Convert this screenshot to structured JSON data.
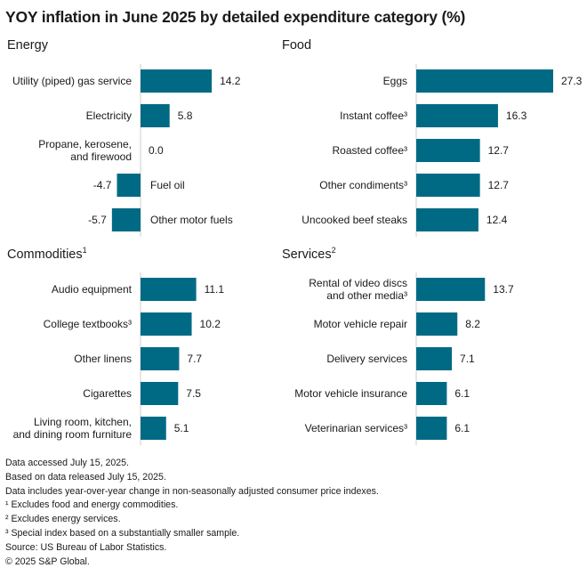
{
  "title": "YOY inflation in June 2025 by detailed expenditure category (%)",
  "colors": {
    "bar": "#006a85",
    "axis": "#cccccc"
  },
  "chart_data": [
    {
      "type": "bar",
      "orientation": "horizontal",
      "title": "Energy",
      "title_sup": "",
      "categories": [
        "Utility (piped) gas service",
        "Electricity",
        "Propane, kerosene,\nand firewood",
        "Fuel oil",
        "Other motor fuels"
      ],
      "values": [
        14.2,
        5.8,
        0.0,
        -4.7,
        -5.7
      ],
      "value_labels": [
        "14.2",
        "5.8",
        "0.0",
        "-4.7",
        "-5.7"
      ]
    },
    {
      "type": "bar",
      "orientation": "horizontal",
      "title": "Food",
      "title_sup": "",
      "categories": [
        "Eggs",
        "Instant coffee³",
        "Roasted coffee³",
        "Other condiments³",
        "Uncooked beef steaks"
      ],
      "values": [
        27.3,
        16.3,
        12.7,
        12.7,
        12.4
      ],
      "value_labels": [
        "27.3",
        "16.3",
        "12.7",
        "12.7",
        "12.4"
      ]
    },
    {
      "type": "bar",
      "orientation": "horizontal",
      "title": "Commodities",
      "title_sup": "1",
      "categories": [
        "Audio equipment",
        "College textbooks³",
        "Other linens",
        "Cigarettes",
        "Living room, kitchen,\nand dining room furniture"
      ],
      "values": [
        11.1,
        10.2,
        7.7,
        7.5,
        5.1
      ],
      "value_labels": [
        "11.1",
        "10.2",
        "7.7",
        "7.5",
        "5.1"
      ]
    },
    {
      "type": "bar",
      "orientation": "horizontal",
      "title": "Services",
      "title_sup": "2",
      "categories": [
        "Rental of video discs\nand other media³",
        "Motor vehicle repair",
        "Delivery services",
        "Motor vehicle insurance",
        "Veterinarian services³"
      ],
      "values": [
        13.7,
        8.2,
        7.1,
        6.1,
        6.1
      ],
      "value_labels": [
        "13.7",
        "8.2",
        "7.1",
        "6.1",
        "6.1"
      ]
    }
  ],
  "notes": [
    "Data accessed July 15, 2025.",
    "Based on data released July 15, 2025.",
    "Data includes year-over-year change in non-seasonally adjusted consumer price indexes.",
    "¹ Excludes food and energy commodities.",
    "² Excludes energy services.",
    "³ Special index based on a substantially smaller sample.",
    "Source: US Bureau of Labor Statistics.",
    "© 2025 S&P Global."
  ]
}
